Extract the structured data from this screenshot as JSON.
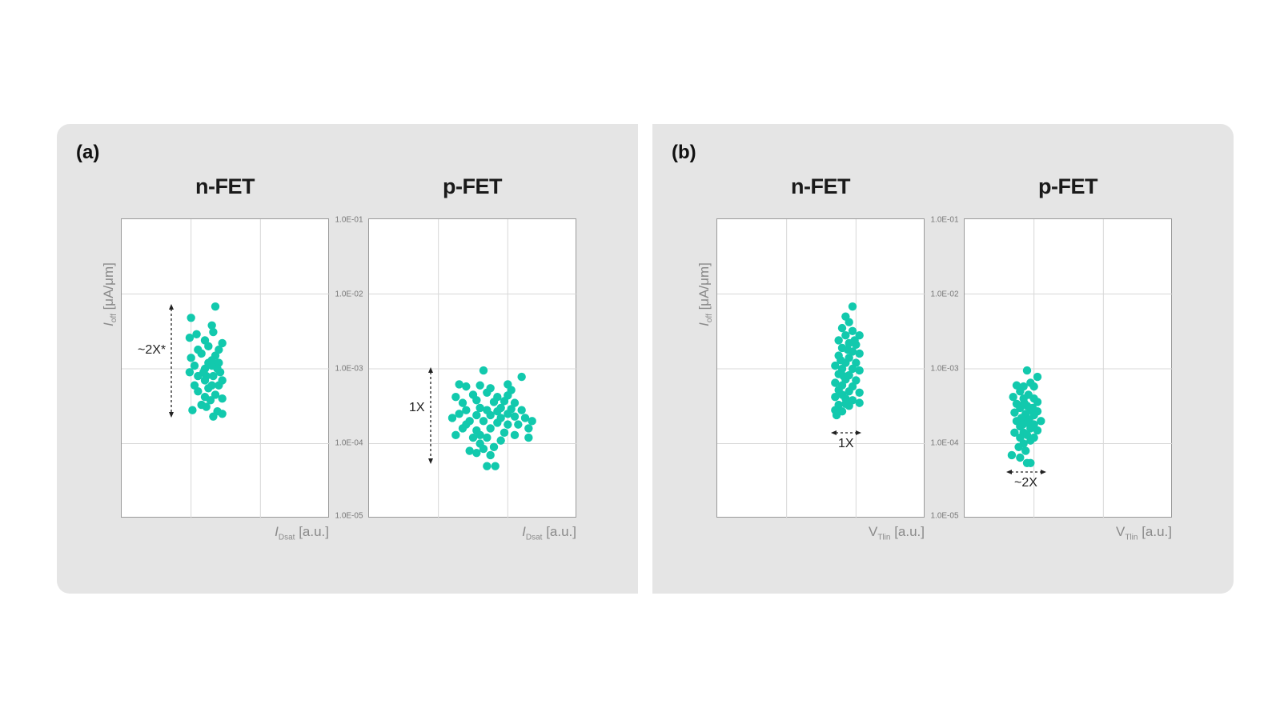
{
  "panels": [
    {
      "letter": "(a)",
      "ylabel_var": "I",
      "ylabel_sub": "off",
      "ylabel_unit": " [μA/μm]"
    },
    {
      "letter": "(b)",
      "ylabel_var": "I",
      "ylabel_sub": "off",
      "ylabel_unit": " [μA/μm]"
    }
  ],
  "y_tick_labels": [
    "1.0E-01",
    "1.0E-02",
    "1.0E-03",
    "1.0E-04",
    "1.0E-05"
  ],
  "colors": {
    "points": "#12c9ad",
    "grid": "#d8d8d8",
    "panel_bg": "#e5e5e5"
  },
  "chart_data": [
    {
      "type": "scatter",
      "id": "a-nfet",
      "title": "n-FET",
      "xlabel_var": "I",
      "xlabel_sub": "Dsat",
      "xlabel_unit": "[a.u.]",
      "x_scale": "arbitrary",
      "xlim": [
        0,
        3
      ],
      "y_scale": "log",
      "ylim": [
        1e-05,
        0.1
      ],
      "grid": true,
      "annotation": "~2X*",
      "points": [
        [
          1.0,
          0.0048
        ],
        [
          1.35,
          0.0068
        ],
        [
          1.08,
          0.0029
        ],
        [
          1.3,
          0.0038
        ],
        [
          1.2,
          0.0024
        ],
        [
          1.32,
          0.0031
        ],
        [
          0.98,
          0.0026
        ],
        [
          1.25,
          0.002
        ],
        [
          1.45,
          0.0022
        ],
        [
          1.1,
          0.0018
        ],
        [
          1.0,
          0.0014
        ],
        [
          1.15,
          0.0016
        ],
        [
          1.35,
          0.0015
        ],
        [
          1.4,
          0.0018
        ],
        [
          1.25,
          0.0012
        ],
        [
          1.05,
          0.0011
        ],
        [
          1.2,
          0.001
        ],
        [
          1.3,
          0.0011
        ],
        [
          1.4,
          0.0012
        ],
        [
          1.42,
          0.0009
        ],
        [
          0.98,
          0.0009
        ],
        [
          1.1,
          0.0008
        ],
        [
          1.22,
          0.0008
        ],
        [
          1.32,
          0.0008
        ],
        [
          1.45,
          0.0007
        ],
        [
          1.2,
          0.0007
        ],
        [
          1.3,
          0.0006
        ],
        [
          1.05,
          0.0006
        ],
        [
          1.4,
          0.0006
        ],
        [
          1.25,
          0.00055
        ],
        [
          1.1,
          0.0005
        ],
        [
          1.35,
          0.00045
        ],
        [
          1.2,
          0.00042
        ],
        [
          1.45,
          0.0004
        ],
        [
          1.28,
          0.00038
        ],
        [
          1.15,
          0.00033
        ],
        [
          1.22,
          0.00031
        ],
        [
          1.02,
          0.00028
        ],
        [
          1.38,
          0.00027
        ],
        [
          1.45,
          0.00025
        ],
        [
          1.32,
          0.00023
        ],
        [
          1.18,
          0.0009
        ],
        [
          1.3,
          0.0013
        ],
        [
          1.38,
          0.001
        ]
      ]
    },
    {
      "type": "scatter",
      "id": "a-pfet",
      "title": "p-FET",
      "xlabel_var": "I",
      "xlabel_sub": "Dsat",
      "xlabel_unit": "[a.u.]",
      "x_scale": "arbitrary",
      "xlim": [
        0,
        3
      ],
      "y_scale": "log",
      "ylim": [
        1e-05,
        0.1
      ],
      "grid": true,
      "annotation": "1X",
      "points": [
        [
          1.65,
          0.00095
        ],
        [
          2.2,
          0.00078
        ],
        [
          1.3,
          0.00062
        ],
        [
          1.4,
          0.00058
        ],
        [
          1.6,
          0.0006
        ],
        [
          2.0,
          0.00062
        ],
        [
          2.05,
          0.00052
        ],
        [
          1.75,
          0.00055
        ],
        [
          1.5,
          0.00045
        ],
        [
          1.25,
          0.00042
        ],
        [
          1.7,
          0.00048
        ],
        [
          1.85,
          0.00042
        ],
        [
          2.0,
          0.00044
        ],
        [
          1.55,
          0.00038
        ],
        [
          1.35,
          0.00035
        ],
        [
          1.8,
          0.00036
        ],
        [
          1.95,
          0.00037
        ],
        [
          2.1,
          0.00035
        ],
        [
          1.6,
          0.0003
        ],
        [
          1.4,
          0.00028
        ],
        [
          1.7,
          0.00028
        ],
        [
          1.9,
          0.0003
        ],
        [
          2.05,
          0.00029
        ],
        [
          2.2,
          0.00028
        ],
        [
          1.3,
          0.00025
        ],
        [
          1.55,
          0.00024
        ],
        [
          1.75,
          0.00024
        ],
        [
          1.9,
          0.00022
        ],
        [
          2.1,
          0.00023
        ],
        [
          2.35,
          0.0002
        ],
        [
          1.45,
          0.0002
        ],
        [
          1.65,
          0.0002
        ],
        [
          1.85,
          0.00019
        ],
        [
          2.0,
          0.00018
        ],
        [
          2.15,
          0.00018
        ],
        [
          2.3,
          0.00016
        ],
        [
          1.35,
          0.00016
        ],
        [
          1.55,
          0.00015
        ],
        [
          1.75,
          0.00016
        ],
        [
          1.95,
          0.00014
        ],
        [
          2.1,
          0.00013
        ],
        [
          2.3,
          0.00012
        ],
        [
          1.25,
          0.00013
        ],
        [
          1.5,
          0.00012
        ],
        [
          1.7,
          0.00012
        ],
        [
          1.9,
          0.00011
        ],
        [
          1.6,
          0.0001
        ],
        [
          1.8,
          9e-05
        ],
        [
          1.45,
          8e-05
        ],
        [
          1.65,
          8.5e-05
        ],
        [
          1.75,
          7e-05
        ],
        [
          1.55,
          7.5e-05
        ],
        [
          1.7,
          5e-05
        ],
        [
          1.82,
          5e-05
        ],
        [
          1.4,
          0.00018
        ],
        [
          2.25,
          0.00022
        ],
        [
          1.2,
          0.00022
        ],
        [
          2.0,
          0.00025
        ],
        [
          1.85,
          0.00027
        ],
        [
          1.6,
          0.00013
        ]
      ]
    },
    {
      "type": "scatter",
      "id": "b-nfet",
      "title": "n-FET",
      "xlabel_var": "V",
      "xlabel_sub": "Tlin",
      "xlabel_unit": " [a.u.]",
      "x_scale": "arbitrary",
      "xlim": [
        0,
        3
      ],
      "y_scale": "log",
      "ylim": [
        1e-05,
        0.1
      ],
      "grid": true,
      "annotation": "1X",
      "points": [
        [
          1.95,
          0.0068
        ],
        [
          1.85,
          0.005
        ],
        [
          1.9,
          0.0042
        ],
        [
          1.8,
          0.0035
        ],
        [
          1.95,
          0.0032
        ],
        [
          1.85,
          0.0028
        ],
        [
          2.05,
          0.0028
        ],
        [
          1.75,
          0.0024
        ],
        [
          1.9,
          0.0022
        ],
        [
          2.0,
          0.0021
        ],
        [
          1.8,
          0.0019
        ],
        [
          1.95,
          0.0017
        ],
        [
          2.05,
          0.0016
        ],
        [
          1.75,
          0.0015
        ],
        [
          1.9,
          0.0014
        ],
        [
          1.85,
          0.0012
        ],
        [
          2.0,
          0.0012
        ],
        [
          1.7,
          0.0011
        ],
        [
          1.8,
          0.001
        ],
        [
          1.95,
          0.001
        ],
        [
          2.05,
          0.00095
        ],
        [
          1.75,
          0.00085
        ],
        [
          1.9,
          0.00082
        ],
        [
          1.85,
          0.00072
        ],
        [
          2.0,
          0.0007
        ],
        [
          1.7,
          0.00065
        ],
        [
          1.8,
          0.0006
        ],
        [
          1.95,
          0.00058
        ],
        [
          1.75,
          0.00052
        ],
        [
          1.9,
          0.0005
        ],
        [
          2.05,
          0.00048
        ],
        [
          1.8,
          0.00045
        ],
        [
          1.7,
          0.00042
        ],
        [
          1.85,
          0.0004
        ],
        [
          1.95,
          0.00038
        ],
        [
          2.05,
          0.00035
        ],
        [
          1.75,
          0.00033
        ],
        [
          1.9,
          0.00032
        ],
        [
          1.7,
          0.00028
        ],
        [
          1.8,
          0.00027
        ],
        [
          1.72,
          0.00024
        ],
        [
          1.85,
          0.00034
        ],
        [
          1.78,
          0.0013
        ],
        [
          1.88,
          0.0018
        ],
        [
          1.98,
          0.0024
        ],
        [
          1.82,
          0.0008
        ]
      ]
    },
    {
      "type": "scatter",
      "id": "b-pfet",
      "title": "p-FET",
      "xlabel_var": "V",
      "xlabel_sub": "Tlin",
      "xlabel_unit": " [a.u.]",
      "x_scale": "arbitrary",
      "xlim": [
        0,
        3
      ],
      "y_scale": "log",
      "ylim": [
        1e-05,
        0.1
      ],
      "grid": true,
      "annotation": "~2X",
      "points": [
        [
          0.9,
          0.00095
        ],
        [
          1.05,
          0.00078
        ],
        [
          0.95,
          0.00065
        ],
        [
          0.75,
          0.0006
        ],
        [
          0.85,
          0.00058
        ],
        [
          1.0,
          0.00058
        ],
        [
          0.8,
          0.0005
        ],
        [
          0.92,
          0.00045
        ],
        [
          0.7,
          0.00042
        ],
        [
          0.85,
          0.0004
        ],
        [
          1.0,
          0.0004
        ],
        [
          1.05,
          0.00036
        ],
        [
          0.75,
          0.00034
        ],
        [
          0.9,
          0.00032
        ],
        [
          0.8,
          0.0003
        ],
        [
          0.95,
          0.00028
        ],
        [
          1.05,
          0.00027
        ],
        [
          0.72,
          0.00026
        ],
        [
          0.88,
          0.00025
        ],
        [
          1.0,
          0.00024
        ],
        [
          0.82,
          0.00022
        ],
        [
          0.93,
          0.00021
        ],
        [
          1.1,
          0.0002
        ],
        [
          0.75,
          0.0002
        ],
        [
          0.9,
          0.00019
        ],
        [
          1.0,
          0.00018
        ],
        [
          0.8,
          0.00017
        ],
        [
          0.95,
          0.00016
        ],
        [
          1.05,
          0.00015
        ],
        [
          0.85,
          0.00014
        ],
        [
          0.72,
          0.00014
        ],
        [
          0.9,
          0.00013
        ],
        [
          1.0,
          0.00012
        ],
        [
          0.8,
          0.00012
        ],
        [
          0.95,
          0.00011
        ],
        [
          0.85,
          0.0001
        ],
        [
          0.78,
          9e-05
        ],
        [
          0.88,
          8e-05
        ],
        [
          0.68,
          7e-05
        ],
        [
          0.8,
          6.5e-05
        ],
        [
          0.9,
          5.5e-05
        ],
        [
          0.95,
          5.5e-05
        ],
        [
          0.86,
          0.00035
        ],
        [
          0.98,
          0.0003
        ],
        [
          0.84,
          0.00018
        ]
      ]
    }
  ]
}
